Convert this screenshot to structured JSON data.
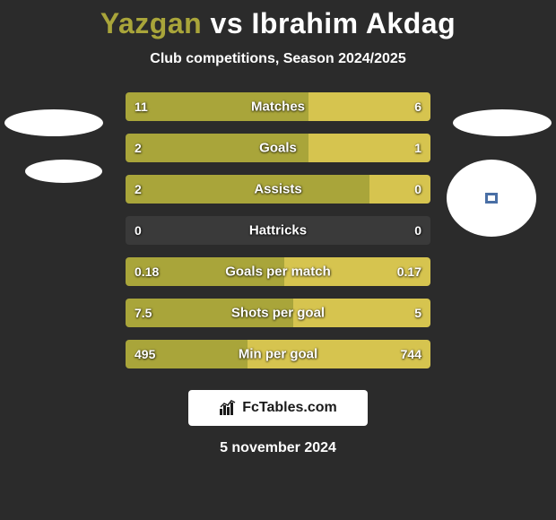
{
  "title": {
    "p1": "Yazgan",
    "vs": "vs",
    "p2": "Ibrahim Akdag"
  },
  "subtitle": "Club competitions, Season 2024/2025",
  "footer": {
    "brand": "FcTables.com"
  },
  "date": "5 november 2024",
  "colors": {
    "left": "#a9a53a",
    "right": "#d6c44f",
    "bg": "#2b2b2b",
    "track": "#3a3a3a",
    "text": "#ffffff"
  },
  "bars": [
    {
      "label": "Matches",
      "lv": "11",
      "rv": "6",
      "lw": 60,
      "rw": 40
    },
    {
      "label": "Goals",
      "lv": "2",
      "rv": "1",
      "lw": 60,
      "rw": 40
    },
    {
      "label": "Assists",
      "lv": "2",
      "rv": "0",
      "lw": 80,
      "rw": 20
    },
    {
      "label": "Hattricks",
      "lv": "0",
      "rv": "0",
      "lw": 0,
      "rw": 0
    },
    {
      "label": "Goals per match",
      "lv": "0.18",
      "rv": "0.17",
      "lw": 52,
      "rw": 48
    },
    {
      "label": "Shots per goal",
      "lv": "7.5",
      "rv": "5",
      "lw": 55,
      "rw": 45
    },
    {
      "label": "Min per goal",
      "lv": "495",
      "rv": "744",
      "lw": 40,
      "rw": 60
    }
  ]
}
